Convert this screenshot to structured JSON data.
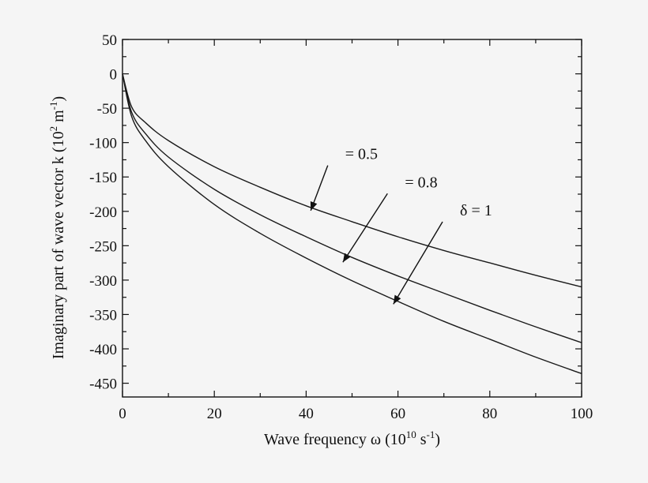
{
  "chart_data": {
    "type": "line",
    "xlabel": {
      "main": "Wave frequency ω (10",
      "sup": "10",
      "tail": " s",
      "sup2": "-1",
      "end": ")"
    },
    "ylabel": {
      "main": "Imaginary part of wave vector k (10",
      "sup": "2",
      "tail": " m",
      "sup2": "-1",
      "end": ")"
    },
    "xlim": [
      0,
      100
    ],
    "ylim": [
      -470,
      50
    ],
    "x_ticks": [
      0,
      20,
      40,
      60,
      80,
      100
    ],
    "x_tick_labels": [
      "0",
      "20",
      "40",
      "60",
      "80",
      "100"
    ],
    "y_ticks": [
      50,
      0,
      -50,
      -100,
      -150,
      -200,
      -250,
      -300,
      -350,
      -400,
      -450
    ],
    "y_tick_labels": [
      "50",
      "0",
      "-50",
      "-100",
      "-150",
      "-200",
      "-250",
      "-300",
      "-350",
      "-400",
      "-450"
    ],
    "grid": false,
    "series": [
      {
        "x": [
          0,
          2,
          5,
          10,
          20,
          30,
          40,
          50,
          60,
          70,
          80,
          90,
          100
        ],
        "y": [
          0,
          -48,
          -71,
          -97,
          -135,
          -165,
          -192,
          -215,
          -237,
          -257,
          -275,
          -293,
          -310
        ]
      },
      {
        "x": [
          0,
          2,
          5,
          10,
          20,
          30,
          40,
          50,
          60,
          70,
          80,
          90,
          100
        ],
        "y": [
          0,
          -56,
          -87,
          -121,
          -168,
          -205,
          -237,
          -267,
          -294,
          -319,
          -344,
          -368,
          -391
        ]
      },
      {
        "x": [
          0,
          2,
          5,
          10,
          20,
          30,
          40,
          50,
          60,
          70,
          80,
          90,
          100
        ],
        "y": [
          0,
          -62,
          -97,
          -135,
          -190,
          -232,
          -268,
          -301,
          -331,
          -360,
          -386,
          -412,
          -436
        ]
      }
    ],
    "annotations": [
      {
        "text": "= 0.5",
        "x": 41,
        "y": -199,
        "text_x": 48.5,
        "text_y": -124
      },
      {
        "text": "= 0.8",
        "x": 48,
        "y": -274,
        "text_x": 61.5,
        "text_y": -165
      },
      {
        "text": "δ = 1",
        "x": 59,
        "y": -335,
        "text_x": 73.5,
        "text_y": -206
      }
    ]
  }
}
